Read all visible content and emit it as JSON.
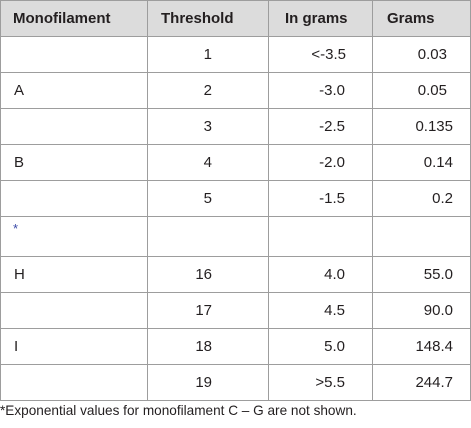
{
  "table": {
    "headers": [
      "Monofilament",
      "Threshold",
      "In grams",
      "Grams"
    ],
    "rows": [
      {
        "mono": "",
        "threshold": "1",
        "in_grams": "<-3.5",
        "grams": "0.03"
      },
      {
        "mono": "A",
        "threshold": "2",
        "in_grams": "-3.0",
        "grams": "0.05"
      },
      {
        "mono": "",
        "threshold": "3",
        "in_grams": "-2.5",
        "grams": "0.135"
      },
      {
        "mono": "B",
        "threshold": "4",
        "in_grams": "-2.0",
        "grams": "0.14"
      },
      {
        "mono": "",
        "threshold": "5",
        "in_grams": "-1.5",
        "grams": "0.2"
      },
      {
        "mono": "*",
        "threshold": "",
        "in_grams": "",
        "grams": ""
      },
      {
        "mono": "H",
        "threshold": "16",
        "in_grams": "4.0",
        "grams": "55.0"
      },
      {
        "mono": "",
        "threshold": "17",
        "in_grams": "4.5",
        "grams": "90.0"
      },
      {
        "mono": "I",
        "threshold": "18",
        "in_grams": "5.0",
        "grams": "148.4"
      },
      {
        "mono": "",
        "threshold": "19",
        "in_grams": ">5.5",
        "grams": "244.7"
      }
    ]
  },
  "footnote": "*Exponential values for monofilament C – G are not shown.",
  "colors": {
    "header_bg": "#dcdcdc",
    "border": "#9d9d9d",
    "asterisk": "#3a4aa8"
  }
}
